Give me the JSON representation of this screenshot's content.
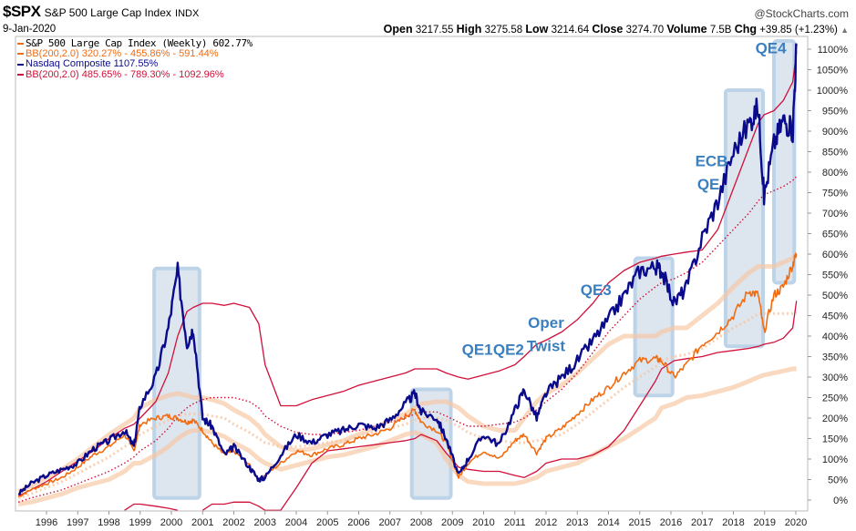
{
  "header": {
    "symbol": "$SPX",
    "name": "S&P 500 Large Cap Index",
    "exchange": "INDX",
    "date": "9-Jan-2020",
    "copyright": "@StockCharts.com",
    "open_label": "Open",
    "open": "3217.55",
    "high_label": "High",
    "high": "3275.58",
    "low_label": "Low",
    "low": "3214.64",
    "close_label": "Close",
    "close": "3274.70",
    "volume_label": "Volume",
    "volume": "7.5B",
    "chg_label": "Chg",
    "chg": "+39.85 (+1.23%)",
    "chg_icon": "up-triangle-icon"
  },
  "legend": [
    {
      "text": "S&P 500 Large Cap Index (Weekly) 602.77%",
      "color": "#f26b0f"
    },
    {
      "text": "BB(200,2.0) 320.27% - 455.86% - 591.44%",
      "color": "#f26b0f"
    },
    {
      "text": "Nasdaq Composite 1107.55%",
      "color": "#0a0a8c"
    },
    {
      "text": "BB(200,2.0) 485.65% - 789.30% - 1092.96%",
      "color": "#d0103a"
    }
  ],
  "chart_data": {
    "type": "line",
    "title": "$SPX S&P 500 Large Cap Index INDX",
    "xlabel": "",
    "ylabel": "",
    "x_ticks": [
      "1996",
      "1997",
      "1998",
      "1999",
      "2000",
      "2001",
      "2002",
      "2003",
      "2004",
      "2005",
      "2006",
      "2007",
      "2008",
      "2009",
      "2010",
      "2011",
      "2012",
      "2013",
      "2014",
      "2015",
      "2016",
      "2017",
      "2018",
      "2019",
      "2020"
    ],
    "y_ticks": [
      "0%",
      "50%",
      "100%",
      "150%",
      "200%",
      "250%",
      "300%",
      "350%",
      "400%",
      "450%",
      "500%",
      "550%",
      "600%",
      "650%",
      "700%",
      "750%",
      "800%",
      "850%",
      "900%",
      "950%",
      "1000%",
      "1050%",
      "1100%"
    ],
    "xlim": [
      1995.05,
      2020.1
    ],
    "ylim": [
      -25,
      1135
    ],
    "y_axis_side": "right",
    "grid": false,
    "legend_position": "top-left",
    "x": [
      1995.1,
      1995.5,
      1996.0,
      1996.5,
      1997.0,
      1997.5,
      1998.0,
      1998.5,
      1998.8,
      1999.0,
      1999.5,
      1999.9,
      2000.2,
      2000.5,
      2000.7,
      2001.0,
      2001.3,
      2001.7,
      2002.0,
      2002.5,
      2002.8,
      2003.0,
      2003.5,
      2004.0,
      2004.5,
      2005.0,
      2005.5,
      2006.0,
      2006.5,
      2007.0,
      2007.5,
      2007.8,
      2008.0,
      2008.5,
      2008.8,
      2009.2,
      2009.5,
      2010.0,
      2010.5,
      2011.0,
      2011.3,
      2011.7,
      2012.0,
      2012.5,
      2013.0,
      2013.5,
      2014.0,
      2014.5,
      2015.0,
      2015.5,
      2015.7,
      2016.1,
      2016.5,
      2017.0,
      2017.5,
      2018.0,
      2018.5,
      2018.8,
      2018.98,
      2019.3,
      2019.6,
      2019.9,
      2020.02
    ],
    "series": [
      {
        "name": "S&P 500 Large Cap Index (Weekly)",
        "color": "#f26b0f",
        "values": [
          8,
          25,
          40,
          55,
          80,
          110,
          130,
          160,
          120,
          185,
          200,
          205,
          200,
          190,
          195,
          170,
          140,
          110,
          120,
          85,
          50,
          60,
          90,
          120,
          110,
          125,
          135,
          150,
          160,
          175,
          205,
          220,
          190,
          170,
          140,
          55,
          90,
          120,
          100,
          145,
          160,
          115,
          150,
          175,
          210,
          245,
          275,
          310,
          340,
          345,
          340,
          300,
          330,
          380,
          410,
          450,
          510,
          500,
          410,
          500,
          520,
          575,
          600
        ]
      },
      {
        "name": "S&P BB(200,2.0) upper",
        "color": "#f7c4a0",
        "style": "band",
        "values": [
          20,
          35,
          55,
          75,
          100,
          130,
          160,
          185,
          200,
          225,
          245,
          255,
          260,
          255,
          250,
          250,
          245,
          235,
          220,
          200,
          180,
          160,
          130,
          120,
          125,
          135,
          145,
          160,
          175,
          195,
          210,
          225,
          235,
          240,
          240,
          225,
          205,
          180,
          170,
          170,
          200,
          240,
          260,
          280,
          310,
          345,
          380,
          400,
          400,
          400,
          410,
          420,
          420,
          450,
          480,
          520,
          555,
          570,
          570,
          570,
          580,
          590,
          595
        ]
      },
      {
        "name": "S&P BB(200,2.0) middle",
        "color": "#f7c4a0",
        "style": "dotted",
        "values": [
          5,
          15,
          30,
          45,
          65,
          85,
          105,
          130,
          145,
          160,
          180,
          195,
          205,
          210,
          210,
          210,
          205,
          200,
          185,
          165,
          150,
          140,
          130,
          130,
          135,
          140,
          145,
          155,
          165,
          175,
          185,
          195,
          200,
          200,
          195,
          180,
          165,
          150,
          145,
          140,
          140,
          145,
          150,
          160,
          185,
          215,
          245,
          275,
          300,
          325,
          340,
          350,
          355,
          370,
          395,
          420,
          440,
          455,
          455,
          455,
          455,
          455,
          458
        ]
      },
      {
        "name": "S&P BB(200,2.0) lower",
        "color": "#f7c4a0",
        "style": "band",
        "values": [
          -10,
          -5,
          5,
          15,
          30,
          40,
          50,
          70,
          90,
          90,
          110,
          130,
          150,
          165,
          170,
          170,
          165,
          155,
          140,
          120,
          100,
          90,
          75,
          85,
          95,
          105,
          110,
          120,
          130,
          145,
          160,
          165,
          160,
          140,
          100,
          60,
          45,
          40,
          40,
          40,
          45,
          55,
          70,
          80,
          90,
          110,
          130,
          150,
          175,
          200,
          225,
          235,
          250,
          255,
          265,
          275,
          290,
          300,
          305,
          310,
          315,
          320,
          320
        ]
      },
      {
        "name": "Nasdaq Composite",
        "color": "#0a0a8c",
        "values": [
          15,
          40,
          60,
          75,
          90,
          125,
          145,
          170,
          130,
          230,
          300,
          420,
          560,
          380,
          420,
          200,
          180,
          110,
          130,
          80,
          50,
          55,
          110,
          160,
          140,
          160,
          170,
          185,
          175,
          195,
          235,
          260,
          215,
          200,
          150,
          60,
          100,
          160,
          135,
          220,
          270,
          200,
          260,
          300,
          340,
          390,
          440,
          500,
          560,
          570,
          560,
          480,
          520,
          640,
          730,
          850,
          920,
          960,
          740,
          870,
          930,
          900,
          1108
        ]
      },
      {
        "name": "Nasdaq BB(200,2.0) upper",
        "color": "#d0103a",
        "style": "solid",
        "values": [
          10,
          25,
          45,
          70,
          95,
          120,
          150,
          175,
          185,
          200,
          240,
          310,
          400,
          460,
          470,
          480,
          480,
          475,
          480,
          470,
          430,
          330,
          230,
          230,
          245,
          255,
          265,
          280,
          290,
          300,
          310,
          320,
          320,
          320,
          310,
          300,
          295,
          305,
          315,
          330,
          350,
          380,
          390,
          410,
          440,
          480,
          530,
          560,
          580,
          590,
          595,
          600,
          605,
          610,
          660,
          760,
          860,
          920,
          940,
          950,
          975,
          1020,
          1093
        ]
      },
      {
        "name": "Nasdaq BB(200,2.0) middle",
        "color": "#d0103a",
        "style": "dotted",
        "values": [
          -5,
          5,
          15,
          25,
          40,
          55,
          70,
          90,
          105,
          120,
          145,
          175,
          205,
          225,
          235,
          245,
          250,
          250,
          250,
          240,
          225,
          205,
          180,
          165,
          160,
          160,
          165,
          170,
          180,
          190,
          200,
          210,
          215,
          215,
          205,
          190,
          180,
          180,
          185,
          190,
          200,
          220,
          240,
          270,
          310,
          360,
          410,
          450,
          490,
          520,
          530,
          540,
          555,
          580,
          620,
          660,
          700,
          730,
          745,
          755,
          765,
          780,
          789
        ]
      },
      {
        "name": "Nasdaq BB(200,2.0) lower",
        "color": "#d0103a",
        "style": "solid",
        "values": [
          null,
          null,
          null,
          null,
          null,
          null,
          null,
          -25,
          -10,
          -10,
          -15,
          -20,
          -25,
          null,
          null,
          -25,
          -10,
          -10,
          -5,
          -5,
          -15,
          -25,
          -25,
          30,
          90,
          120,
          125,
          130,
          135,
          140,
          145,
          150,
          160,
          145,
          115,
          80,
          75,
          70,
          70,
          60,
          55,
          70,
          90,
          100,
          100,
          110,
          130,
          170,
          230,
          290,
          320,
          340,
          345,
          350,
          360,
          365,
          370,
          375,
          380,
          385,
          395,
          420,
          486
        ]
      }
    ],
    "annotations": [
      {
        "text": "QE1",
        "x": 2009.8,
        "y": 355
      },
      {
        "text": "QE2",
        "x": 2010.8,
        "y": 355
      },
      {
        "text": "Oper",
        "x": 2012.0,
        "y": 420
      },
      {
        "text": "Twist",
        "x": 2012.0,
        "y": 363
      },
      {
        "text": "QE3",
        "x": 2013.6,
        "y": 500
      },
      {
        "text": "ECB",
        "x": 2017.3,
        "y": 815
      },
      {
        "text": "QE",
        "x": 2017.2,
        "y": 758
      },
      {
        "text": "QE4",
        "x": 2019.2,
        "y": 1090
      }
    ],
    "highlight_boxes": [
      {
        "x0": 1999.45,
        "x1": 2000.9,
        "y0": 5,
        "y1": 565
      },
      {
        "x0": 2007.7,
        "x1": 2008.95,
        "y0": 5,
        "y1": 270
      },
      {
        "x0": 2014.85,
        "x1": 2016.05,
        "y0": 255,
        "y1": 590
      },
      {
        "x0": 2017.75,
        "x1": 2018.95,
        "y0": 375,
        "y1": 1000
      },
      {
        "x0": 2019.3,
        "x1": 2019.95,
        "y0": 530,
        "y1": 1120
      }
    ]
  }
}
